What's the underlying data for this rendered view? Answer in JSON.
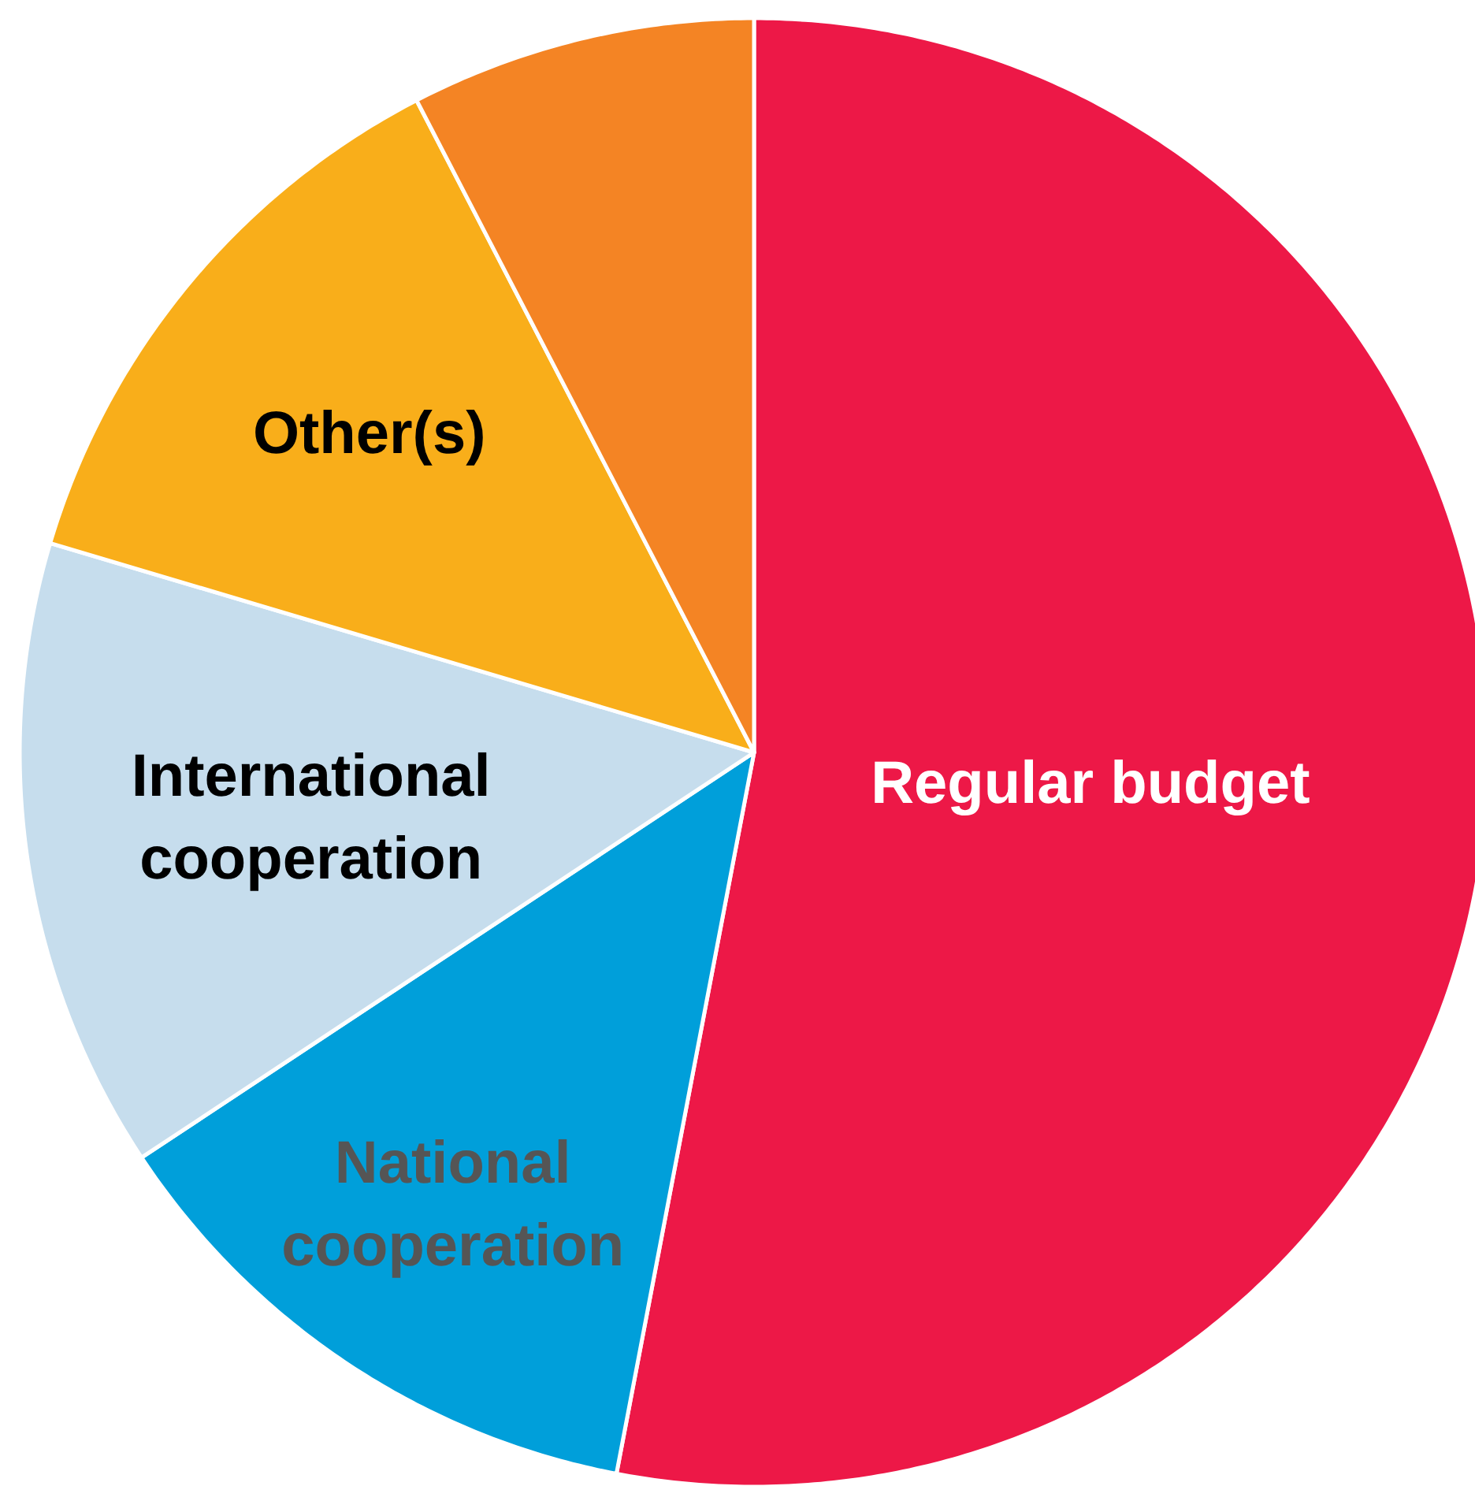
{
  "chart_data": {
    "type": "pie",
    "categories": [
      "Regular budget",
      "National cooperation",
      "International cooperation",
      "Other(s)",
      null
    ],
    "values": [
      53,
      12.7,
      13.9,
      12.8,
      7.6
    ],
    "colors": [
      "#ed1847",
      "#009fda",
      "#c6dded",
      "#f9ae1a",
      "#f48424"
    ]
  }
}
